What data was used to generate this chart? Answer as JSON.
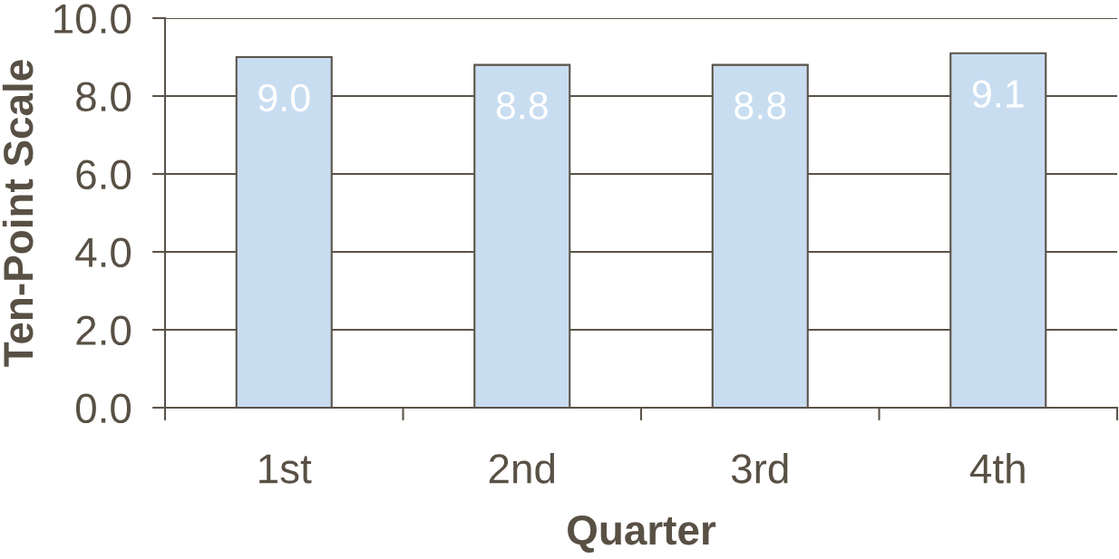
{
  "chart_data": {
    "type": "bar",
    "xlabel": "Quarter",
    "ylabel": "Ten-Point Scale",
    "categories": [
      "1st",
      "2nd",
      "3rd",
      "4th"
    ],
    "values": [
      9.0,
      8.8,
      8.8,
      9.1
    ],
    "value_labels": [
      "9.0",
      "8.8",
      "8.8",
      "9.1"
    ],
    "color": "#c9ddf1",
    "ylim": [
      0,
      10
    ],
    "yticks": [
      {
        "value": 0,
        "label": "0.0"
      },
      {
        "value": 2,
        "label": "2.0"
      },
      {
        "value": 4,
        "label": "4.0"
      },
      {
        "value": 6,
        "label": "6.0"
      },
      {
        "value": 8,
        "label": "8.0"
      },
      {
        "value": 10,
        "label": "10.0"
      }
    ],
    "grid": "y"
  }
}
